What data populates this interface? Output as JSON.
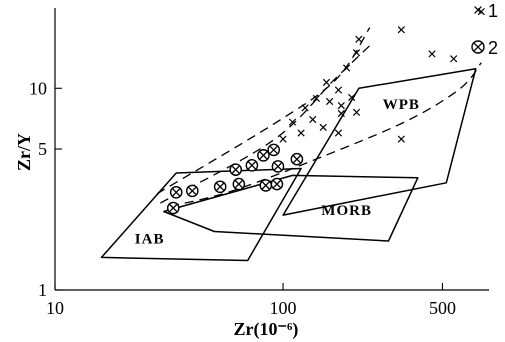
{
  "chart_data": {
    "type": "scatter",
    "xlabel": "Zr(10⁻⁶)",
    "ylabel": "Zr/Y",
    "x_scale": "log",
    "y_scale": "log",
    "xlim": [
      10,
      800
    ],
    "ylim": [
      1,
      25
    ],
    "x_ticks": [
      {
        "value": 10,
        "label": "10"
      },
      {
        "value": 100,
        "label": "100"
      },
      {
        "value": 500,
        "label": "500"
      }
    ],
    "y_ticks": [
      {
        "value": 1,
        "label": "1"
      },
      {
        "value": 5,
        "label": "5"
      },
      {
        "value": 10,
        "label": "10"
      }
    ],
    "grid": false,
    "legend": {
      "placement": "top-right",
      "entries": [
        {
          "symbol": "cross",
          "label": "1"
        },
        {
          "symbol": "circled-cross",
          "label": "2"
        }
      ]
    },
    "fields": [
      {
        "label": "WPB",
        "polygon": [
          [
            215,
            10.0
          ],
          [
            700,
            12.5
          ],
          [
            520,
            3.4
          ],
          [
            100,
            2.35
          ]
        ]
      },
      {
        "label": "MORB",
        "polygon": [
          [
            30,
            2.45
          ],
          [
            50,
            1.95
          ],
          [
            290,
            1.75
          ],
          [
            390,
            3.6
          ],
          [
            110,
            3.7
          ]
        ]
      },
      {
        "label": "IAB",
        "polygon": [
          [
            16,
            1.45
          ],
          [
            70,
            1.4
          ],
          [
            120,
            4.0
          ],
          [
            34,
            3.8
          ]
        ]
      }
    ],
    "trend_lines": [
      {
        "name": "upper",
        "points": [
          [
            28,
            3.0
          ],
          [
            90,
            6.6
          ],
          [
            170,
            11.0
          ],
          [
            240,
            20.0
          ]
        ]
      },
      {
        "name": "middle",
        "points": [
          [
            29,
            2.7
          ],
          [
            90,
            5.5
          ],
          [
            170,
            11.2
          ],
          [
            250,
            17.0
          ]
        ]
      },
      {
        "name": "lower",
        "points": [
          [
            32,
            2.6
          ],
          [
            60,
            3.1
          ],
          [
            150,
            4.6
          ],
          [
            350,
            6.9
          ],
          [
            600,
            10.0
          ],
          [
            740,
            13.4
          ]
        ]
      }
    ],
    "series": [
      {
        "name": "1",
        "marker": "cross",
        "points": [
          [
            155,
            10.7
          ],
          [
            175,
            9.8
          ],
          [
            140,
            8.9
          ],
          [
            160,
            8.6
          ],
          [
            125,
            8.0
          ],
          [
            180,
            8.2
          ],
          [
            200,
            9.0
          ],
          [
            190,
            12.6
          ],
          [
            210,
            15.0
          ],
          [
            215,
            17.5
          ],
          [
            330,
            19.5
          ],
          [
            180,
            7.5
          ],
          [
            210,
            7.6
          ],
          [
            135,
            7.0
          ],
          [
            110,
            6.8
          ],
          [
            150,
            6.4
          ],
          [
            120,
            6.0
          ],
          [
            100,
            5.6
          ],
          [
            175,
            6.0
          ],
          [
            330,
            5.6
          ],
          [
            450,
            14.8
          ],
          [
            560,
            14.0
          ],
          [
            740,
            24.0
          ]
        ]
      },
      {
        "name": "2",
        "marker": "circled-cross",
        "points": [
          [
            33,
            2.55
          ],
          [
            34,
            3.05
          ],
          [
            40,
            3.1
          ],
          [
            53,
            3.25
          ],
          [
            64,
            3.35
          ],
          [
            62,
            3.95
          ],
          [
            73,
            4.15
          ],
          [
            82,
            4.65
          ],
          [
            91,
            4.95
          ],
          [
            95,
            4.1
          ],
          [
            115,
            4.45
          ],
          [
            84,
            3.3
          ],
          [
            94,
            3.35
          ]
        ]
      }
    ]
  }
}
